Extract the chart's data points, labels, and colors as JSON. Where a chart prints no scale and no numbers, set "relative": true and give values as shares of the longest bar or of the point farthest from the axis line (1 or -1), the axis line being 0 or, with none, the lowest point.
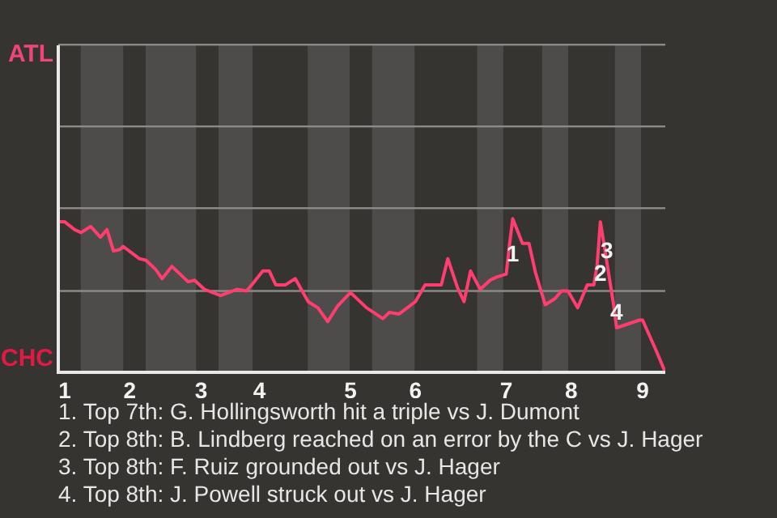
{
  "chart_data": {
    "type": "line",
    "color": "#ff3d6e",
    "relative": true,
    "ref_lines": [
      {
        "axis": "y",
        "value": 0.53,
        "color": "#8a8a88"
      }
    ],
    "marker": "none",
    "line_style": "solid",
    "categories": [
      null,
      null,
      "1",
      null,
      null,
      null,
      null,
      null,
      null,
      null,
      null,
      null,
      null,
      null,
      null,
      null,
      null,
      null,
      null,
      null,
      null,
      null,
      "2",
      null,
      null,
      null,
      null,
      null,
      null,
      null,
      null,
      null,
      null,
      null,
      null,
      null,
      null,
      null,
      null,
      null,
      null,
      null,
      null,
      null,
      "3",
      null,
      null,
      null,
      null,
      null,
      null,
      null,
      null,
      null,
      null,
      null,
      null,
      null,
      null,
      null,
      null,
      null,
      "4",
      null,
      null,
      null,
      null,
      null,
      null,
      null,
      null,
      null,
      null,
      null,
      null,
      null,
      null,
      null,
      null,
      null,
      null,
      null,
      null,
      null,
      null,
      null,
      null,
      null,
      null,
      null,
      "5",
      null,
      null,
      null,
      null,
      null,
      null,
      null,
      null,
      null,
      null,
      null,
      null,
      null,
      null,
      null,
      null,
      null,
      null,
      null,
      "6",
      null,
      null,
      null,
      null,
      null,
      null,
      null,
      null,
      null,
      null,
      null,
      null,
      null,
      null,
      null,
      null,
      null,
      null,
      null,
      null,
      null,
      null,
      null,
      null,
      null,
      null,
      null,
      "7",
      null,
      null,
      null,
      null,
      null,
      null,
      null,
      null,
      null,
      null,
      null,
      null,
      null,
      null,
      null,
      null,
      null,
      null,
      null,
      "8",
      null,
      null,
      null,
      null,
      null,
      null,
      null,
      null,
      null,
      null,
      null,
      null,
      null,
      null,
      null,
      null,
      null,
      null,
      null,
      null,
      null,
      "9",
      null,
      null,
      null,
      null,
      null,
      null,
      null
    ],
    "values": [
      0.98,
      null,
      0.98,
      null,
      null,
      0.93,
      null,
      0.91,
      null,
      null,
      0.95,
      null,
      null,
      0.88,
      null,
      0.93,
      null,
      0.79,
      null,
      0.8,
      0.82,
      null,
      null,
      null,
      null,
      0.74,
      null,
      0.73,
      null,
      null,
      0.67,
      null,
      0.61,
      null,
      null,
      0.69,
      null,
      null,
      null,
      null,
      0.59,
      null,
      0.6,
      null,
      null,
      0.54,
      null,
      null,
      null,
      null,
      0.5,
      null,
      null,
      null,
      null,
      0.54,
      null,
      null,
      0.53,
      null,
      0.58,
      null,
      null,
      0.66,
      null,
      0.66,
      null,
      0.57,
      null,
      null,
      0.57,
      null,
      null,
      0.61,
      null,
      null,
      null,
      0.46,
      null,
      null,
      0.42,
      null,
      null,
      0.33,
      null,
      null,
      0.43,
      null,
      null,
      null,
      0.52,
      null,
      null,
      null,
      null,
      0.42,
      null,
      null,
      null,
      null,
      0.35,
      null,
      0.39,
      null,
      null,
      0.38,
      null,
      null,
      null,
      null,
      0.46,
      null,
      null,
      0.57,
      null,
      null,
      null,
      null,
      0.57,
      null,
      0.74,
      null,
      null,
      0.55,
      null,
      0.46,
      null,
      0.66,
      null,
      null,
      0.54,
      null,
      null,
      0.6,
      null,
      0.62,
      null,
      null,
      0.64,
      0.83,
      1,
      null,
      null,
      0.84,
      null,
      0.84,
      null,
      0.65,
      null,
      null,
      0.44,
      null,
      null,
      0.48,
      null,
      0.53,
      null,
      0.53,
      null,
      null,
      0.42,
      null,
      null,
      0.57,
      null,
      0.57,
      0.7,
      0.98,
      0.85,
      null,
      null,
      0.45,
      0.29,
      null,
      null,
      null,
      null,
      null,
      null,
      0.34,
      0.34,
      null,
      null,
      null,
      0.15,
      null,
      null,
      0
    ],
    "annotations": [
      {
        "text": "1",
        "y": 0.83
      },
      {
        "text": "2",
        "y": 0.7
      },
      {
        "text": "3",
        "y": 0.85
      },
      {
        "text": "4",
        "y": 0.45
      },
      "ATL",
      "CHC",
      "1. Top 7th: G. Hollingsworth hit a triple vs J. Dumont",
      "2. Top 8th: B. Lindberg reached on an error by the C vs J. Hager",
      "3. Top 8th: F. Ruiz grounded out vs J. Hager",
      "4. Top 8th: J. Powell struck out vs J. Hager"
    ]
  }
}
